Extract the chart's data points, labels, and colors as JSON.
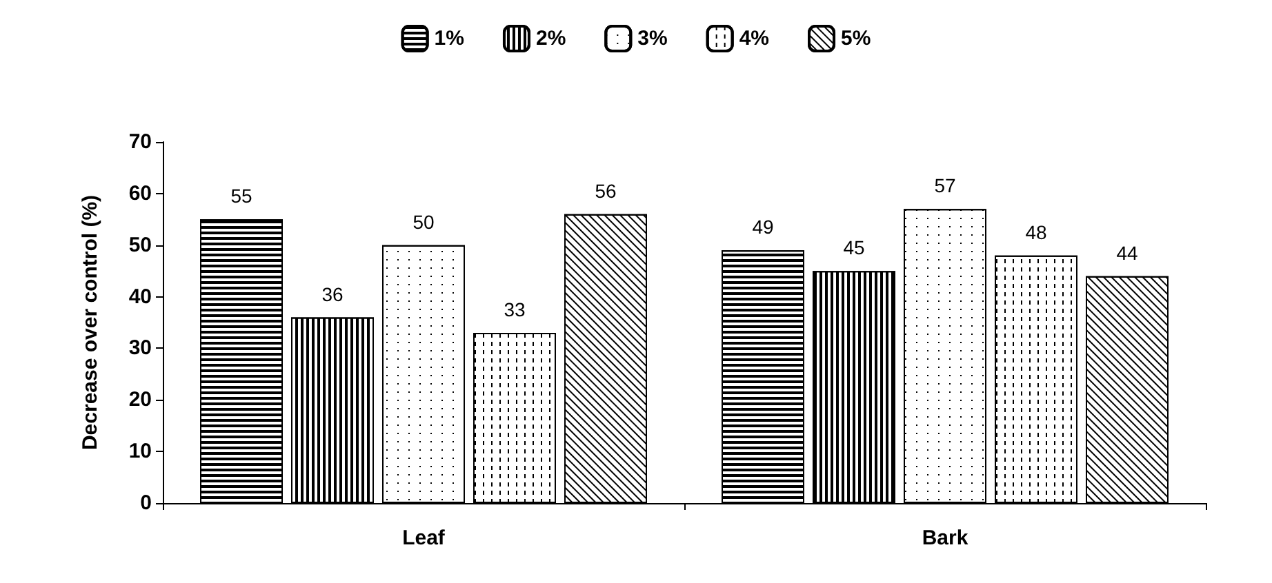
{
  "chart_data": {
    "type": "bar",
    "ylabel": "Decrease over control (%)",
    "categories": [
      "Leaf",
      "Bark"
    ],
    "series": [
      {
        "name": "1%",
        "color": "#000000",
        "values": [
          55,
          49
        ]
      },
      {
        "name": "2%",
        "color": "#000000",
        "values": [
          36,
          45
        ]
      },
      {
        "name": "3%",
        "color": "#000000",
        "values": [
          50,
          57
        ]
      },
      {
        "name": "4%",
        "color": "#000000",
        "values": [
          33,
          48
        ]
      },
      {
        "name": "5%",
        "color": "#000000",
        "values": [
          56,
          44
        ]
      }
    ],
    "ylim": [
      0,
      70
    ],
    "yticks": [
      0,
      10,
      20,
      30,
      40,
      50,
      60,
      70
    ],
    "grid": false,
    "legend": "top",
    "data_labels": true
  }
}
